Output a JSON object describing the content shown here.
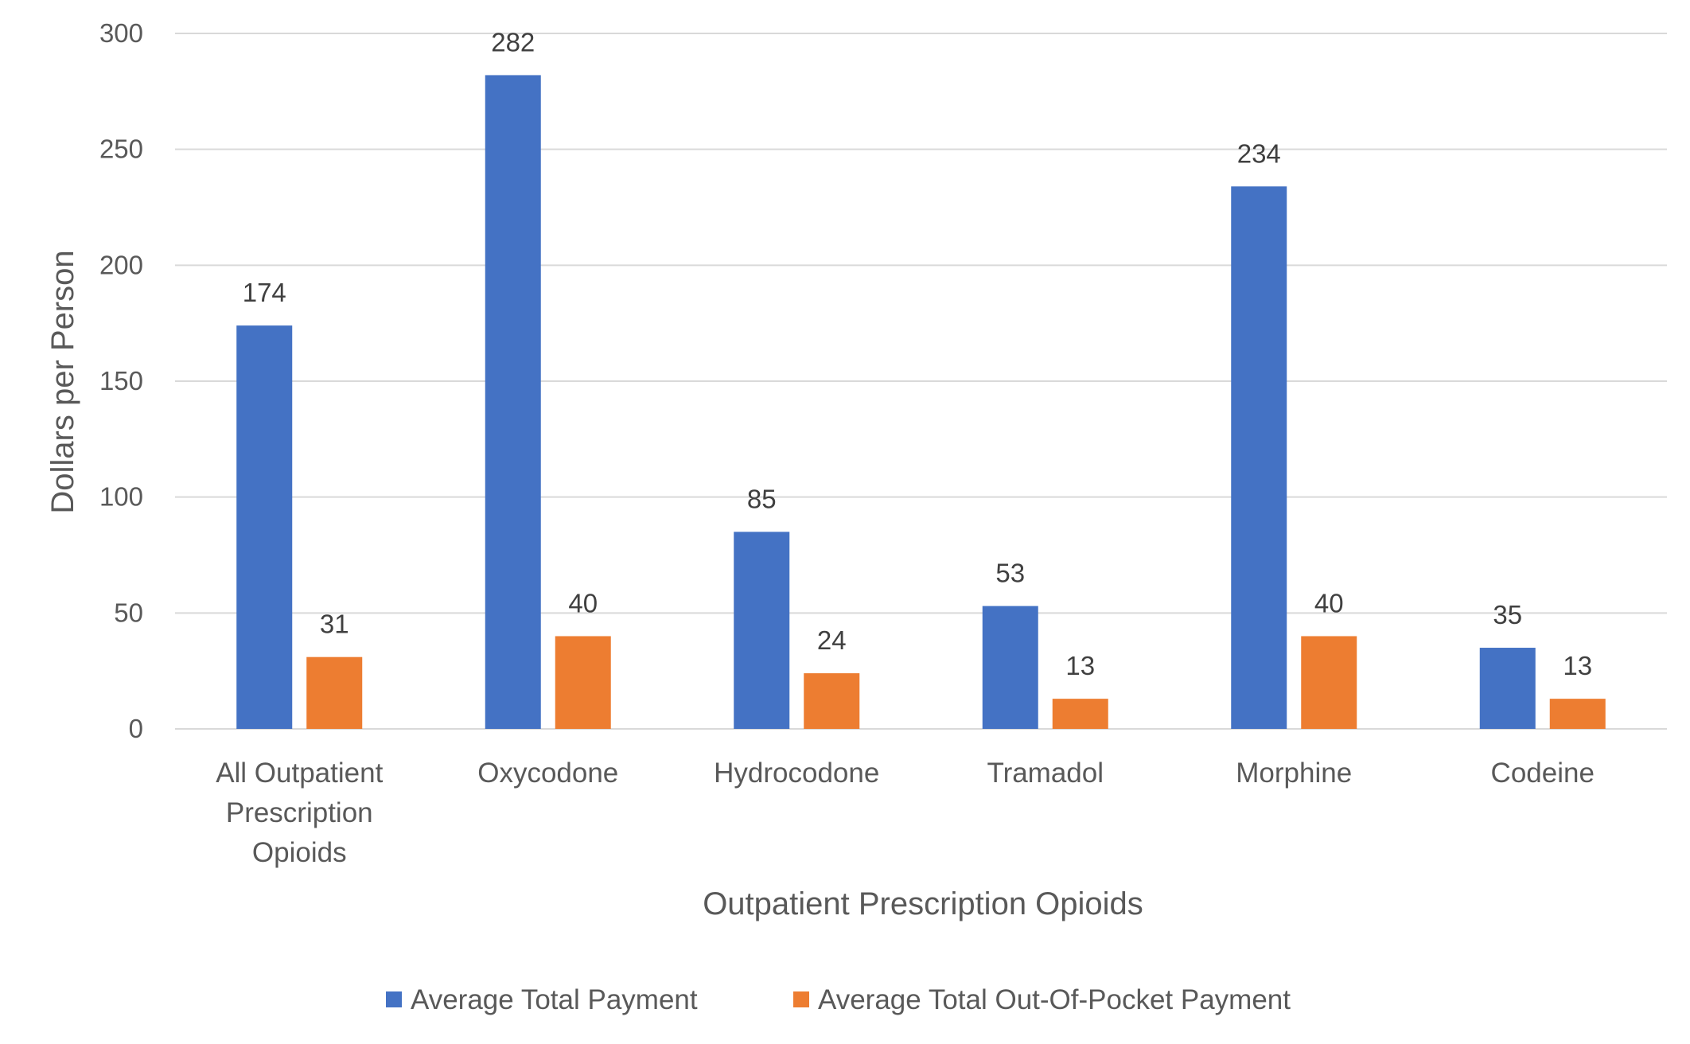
{
  "chart_data": {
    "type": "bar",
    "title": "",
    "xlabel": "Outpatient Prescription Opioids",
    "ylabel": "Dollars per Person",
    "ylim": [
      0,
      300
    ],
    "yticks": [
      0,
      50,
      100,
      150,
      200,
      250,
      300
    ],
    "grid": true,
    "legend_position": "bottom",
    "categories": [
      [
        "All Outpatient",
        "Prescription",
        "Opioids"
      ],
      [
        "Oxycodone"
      ],
      [
        "Hydrocodone"
      ],
      [
        "Tramadol"
      ],
      [
        "Morphine"
      ],
      [
        "Codeine"
      ]
    ],
    "series": [
      {
        "name": "Average Total Payment",
        "color": "#4472c4",
        "values": [
          174,
          282,
          85,
          53,
          234,
          35
        ]
      },
      {
        "name": "Average Total Out-Of-Pocket Payment",
        "color": "#ed7d31",
        "values": [
          31,
          40,
          24,
          13,
          40,
          13
        ]
      }
    ]
  }
}
